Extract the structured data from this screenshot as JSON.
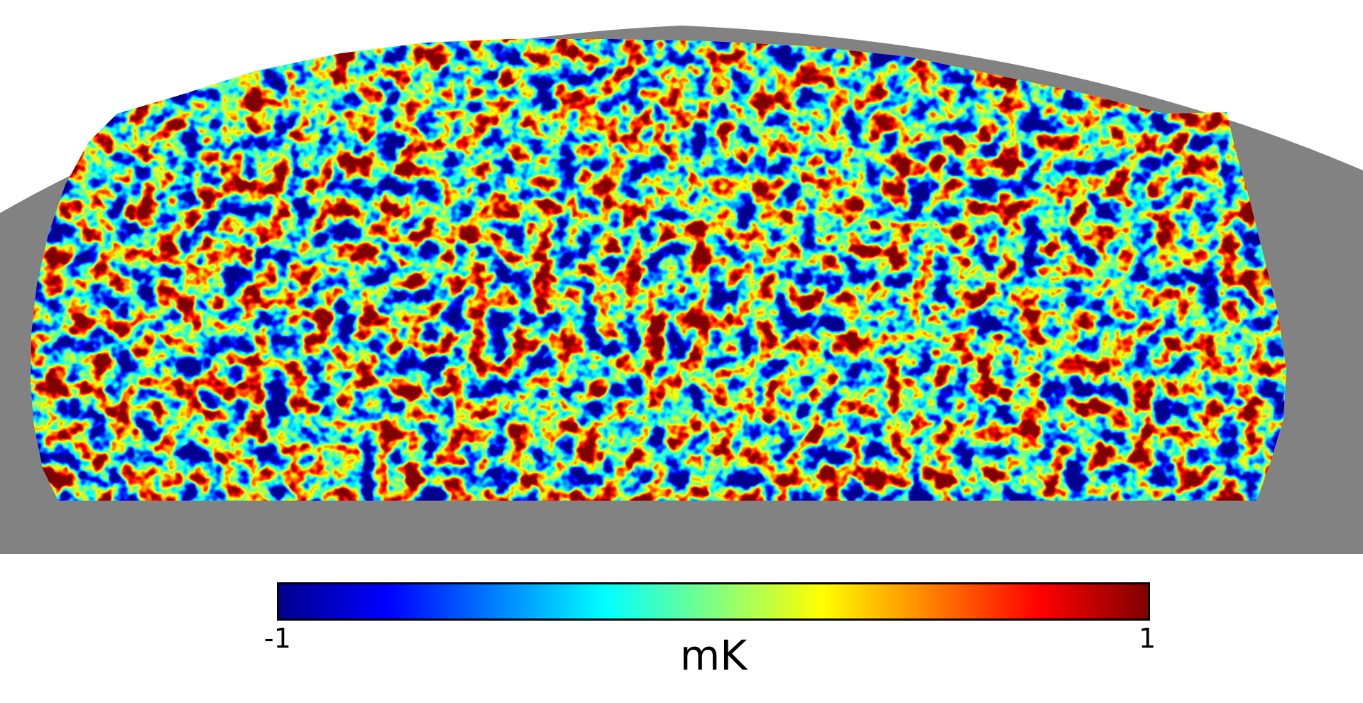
{
  "map": {
    "background_color": "#ffffff",
    "masked_color": "#828282",
    "colormap": [
      "#00008f",
      "#0000ff",
      "#0080ff",
      "#00ffff",
      "#80ff80",
      "#ffff00",
      "#ff8000",
      "#ff0000",
      "#800000"
    ]
  },
  "colorbar": {
    "min_label": "-1",
    "max_label": "1",
    "unit": "mK"
  }
}
